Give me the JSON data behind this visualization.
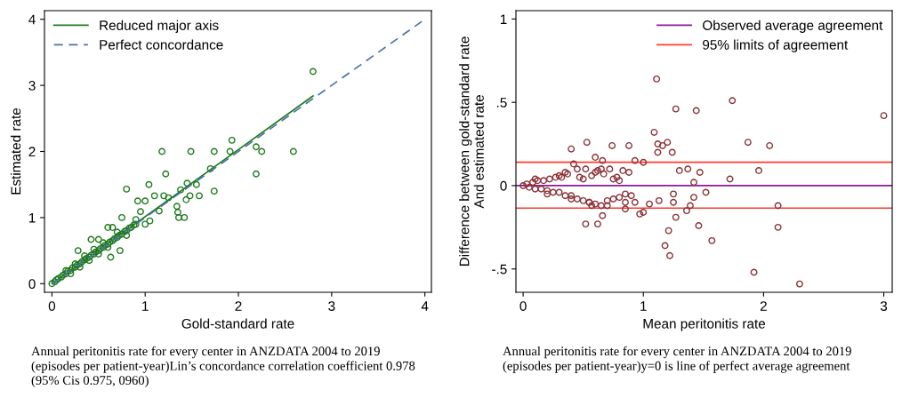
{
  "chart_data": [
    {
      "type": "scatter",
      "xlabel": "Gold-standard rate",
      "ylabel": "Estimated rate",
      "xlim": [
        -0.08,
        4.07
      ],
      "ylim": [
        -0.13,
        4.13
      ],
      "xticks": [
        0,
        1,
        2,
        3,
        4
      ],
      "yticks": [
        0,
        1,
        2,
        3,
        4
      ],
      "grid": false,
      "legend": "top left",
      "annotations": [
        "Annual peritonitis rate for every center in ANZDATA 2004 to 2019\n(episodes per patient-year)Lin’s concordance correlation coefficient 0.978\n(95% Cis 0.975, 0960)"
      ],
      "series": [
        {
          "color": "#1f7a1f",
          "marker": "circle",
          "x": [
            0,
            0.03,
            0.05,
            0.07,
            0.1,
            0.12,
            0.15,
            0.17,
            0.2,
            0.22,
            0.25,
            0.27,
            0.3,
            0.32,
            0.35,
            0.37,
            0.4,
            0.42,
            0.45,
            0.47,
            0.5,
            0.52,
            0.55,
            0.57,
            0.6,
            0.62,
            0.65,
            0.67,
            0.7,
            0.72,
            0.75,
            0.78,
            0.8,
            0.83,
            0.85,
            0.88,
            0.9,
            0.15,
            0.2,
            0.25,
            0.3,
            0.35,
            0.4,
            0.45,
            0.5,
            0.55,
            0.6,
            0.7,
            0.8,
            0.9,
            2.8,
            1.18,
            1.49,
            1.74,
            1.91,
            1.93,
            2.19,
            2.25,
            2.59,
            2.19,
            1.22,
            1.74,
            1.58,
            1.42,
            1.36,
            1.35,
            1.34,
            1.04,
            0.8,
            1.7,
            1.45,
            1.55,
            1.44,
            1.48,
            1.38,
            0.92,
            1.0,
            1.1,
            1.2,
            1.25,
            0.95,
            0.75,
            0.6,
            0.65,
            0.42,
            0.5,
            0.28,
            0.63,
            0.73,
            1.0,
            1.05,
            1.15
          ],
          "values": [
            0,
            0.03,
            0.06,
            0.08,
            0.1,
            0.13,
            0.15,
            0.19,
            0.2,
            0.24,
            0.25,
            0.28,
            0.3,
            0.33,
            0.36,
            0.38,
            0.4,
            0.43,
            0.45,
            0.48,
            0.5,
            0.53,
            0.55,
            0.58,
            0.6,
            0.63,
            0.65,
            0.68,
            0.7,
            0.73,
            0.75,
            0.79,
            0.8,
            0.84,
            0.85,
            0.89,
            0.9,
            0.2,
            0.15,
            0.3,
            0.25,
            0.42,
            0.35,
            0.52,
            0.45,
            0.62,
            0.55,
            0.78,
            0.73,
            0.97,
            3.21,
            2.0,
            2.0,
            2.0,
            2.0,
            2.17,
            2.07,
            2.0,
            2.0,
            1.66,
            1.66,
            1.4,
            1.33,
            1.0,
            1.0,
            1.08,
            1.17,
            1.5,
            1.43,
            1.74,
            1.52,
            1.5,
            1.27,
            1.33,
            1.42,
            1.25,
            1.25,
            1.33,
            1.33,
            1.3,
            1.09,
            1.0,
            0.85,
            0.85,
            0.67,
            0.67,
            0.5,
            0.4,
            0.5,
            0.9,
            0.95,
            1.1
          ]
        },
        {
          "type": "line",
          "name": "Reduced major axis",
          "color": "#1f7a1f",
          "line_style": "solid",
          "x": [
            0,
            2.8
          ],
          "values": [
            0,
            2.84
          ]
        },
        {
          "type": "line",
          "name": "Perfect concordance",
          "color": "#4a72a8",
          "line_style": "dashed",
          "x": [
            0,
            4
          ],
          "values": [
            0,
            4
          ]
        }
      ]
    },
    {
      "type": "scatter",
      "xlabel": "Mean peritonitis rate",
      "ylabel": "Difference between gold-standard rate\nAnd estimated rate",
      "xlim": [
        -0.06,
        3.07
      ],
      "ylim": [
        -0.64,
        1.05
      ],
      "xticks": [
        0,
        1,
        2,
        3
      ],
      "yticks": [
        {
          "value": -0.5,
          "label": "-.5"
        },
        0,
        {
          "value": 0.5,
          "label": ".5"
        },
        1
      ],
      "grid": false,
      "legend": "top right",
      "annotations": [
        "Annual peritonitis rate for every center in ANZDATA 2004 to 2019\n(episodes per patient-year)y=0 is line of perfect average agreement"
      ],
      "ref_lines": [
        {
          "axis": "y",
          "value": 0,
          "label": "Observed average agreement",
          "color": "#8b1a9a"
        },
        {
          "axis": "y",
          "value": 0.14,
          "label": "95% limits of agreement",
          "color": "#ff3b2f"
        },
        {
          "axis": "y",
          "value": -0.135,
          "label": null,
          "color": "#ff3b2f"
        }
      ],
      "series": [
        {
          "color": "#8b3036",
          "marker": "circle",
          "x": [
            0,
            0.03,
            0.05,
            0.08,
            0.1,
            0.12,
            0.15,
            0.17,
            0.2,
            0.22,
            0.25,
            0.27,
            0.3,
            0.32,
            0.35,
            0.37,
            0.4,
            0.42,
            0.45,
            0.47,
            0.5,
            0.52,
            0.55,
            0.57,
            0.6,
            0.62,
            0.65,
            0.67,
            0.7,
            0.72,
            0.75,
            0.78,
            0.8,
            0.83,
            0.85,
            0.88,
            0.9,
            0.1,
            0.2,
            0.3,
            0.4,
            0.5,
            0.6,
            0.7,
            0.8,
            0.35,
            0.45,
            0.55,
            0.65,
            0.75,
            0.85,
            1.11,
            1.27,
            1.44,
            1.74,
            3.0,
            1.09,
            1.87,
            2.05,
            1.2,
            1.12,
            1.16,
            1.24,
            1.12,
            0.53,
            0.4,
            0.74,
            0.88,
            0.6,
            0.66,
            0.93,
            1.0,
            1.96,
            1.72,
            1.47,
            1.3,
            1.37,
            1.42,
            2.12,
            2.12,
            1.92,
            2.3,
            1.57,
            1.46,
            1.18,
            1.22,
            1.21,
            1.27,
            1.36,
            1.39,
            1.42,
            1.52,
            1.25,
            1.25,
            1.05,
            1.13,
            0.97,
            1.0,
            0.52,
            0.62,
            0.66,
            0.57,
            0.85,
            0.93
          ],
          "values": [
            0,
            0.01,
            -0.01,
            0.02,
            -0.02,
            0.03,
            -0.02,
            0.03,
            -0.03,
            0.04,
            -0.04,
            0.05,
            -0.04,
            0.05,
            -0.06,
            0.07,
            -0.06,
            0.13,
            -0.08,
            0.05,
            -0.09,
            0.1,
            -0.1,
            0.06,
            -0.11,
            0.09,
            -0.12,
            0.07,
            -0.09,
            0.1,
            -0.08,
            0.05,
            -0.07,
            0.09,
            -0.1,
            0.08,
            -0.06,
            0.04,
            -0.05,
            0.06,
            -0.08,
            0.04,
            0.08,
            -0.12,
            0.03,
            0.08,
            0.1,
            -0.1,
            0.1,
            0.04,
            -0.05,
            0.64,
            0.46,
            0.45,
            0.51,
            0.42,
            0.32,
            0.26,
            0.24,
            0.26,
            0.25,
            0.24,
            0.2,
            0.2,
            0.26,
            0.22,
            0.24,
            0.24,
            0.17,
            0.15,
            0.15,
            0.14,
            0.09,
            0.04,
            0.08,
            0.09,
            0.1,
            0.02,
            -0.12,
            -0.25,
            -0.52,
            -0.59,
            -0.33,
            -0.24,
            -0.36,
            -0.42,
            -0.27,
            -0.19,
            -0.15,
            -0.12,
            -0.07,
            -0.04,
            -0.1,
            -0.05,
            -0.11,
            -0.09,
            -0.17,
            -0.16,
            -0.23,
            -0.23,
            -0.18,
            -0.12,
            -0.14,
            -0.1
          ]
        }
      ]
    }
  ]
}
